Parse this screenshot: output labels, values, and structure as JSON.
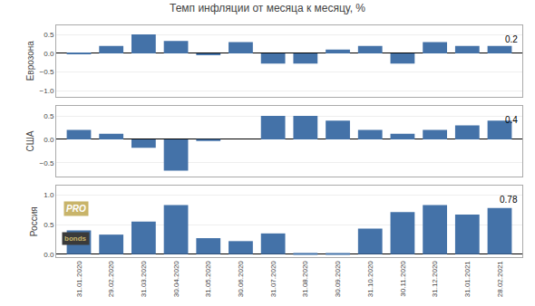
{
  "chart_data": [
    {
      "type": "bar",
      "title": "Темп инфляции от месяца к месяцу, %",
      "categories": [
        "31.01.2020",
        "29.02.2020",
        "31.03.2020",
        "30.04.2020",
        "31.05.2020",
        "30.06.2020",
        "31.07.2020",
        "31.08.2020",
        "30.09.2020",
        "31.10.2020",
        "30.11.2020",
        "31.12.2020",
        "31.01.2021",
        "28.02.2021"
      ],
      "values": [
        -0.02,
        0.2,
        0.51,
        0.33,
        -0.05,
        0.3,
        -0.27,
        -0.27,
        0.1,
        0.2,
        -0.27,
        0.3,
        0.2,
        0.2
      ],
      "color": "#4472a8",
      "y_label": "Еврозона",
      "ylim": [
        -1.15,
        0.75
      ],
      "yticks": [
        {
          "value": -1.0,
          "label": "−1.0"
        },
        {
          "value": -0.5,
          "label": "−0.5"
        },
        {
          "value": 0.0,
          "label": "0.0"
        },
        0.5
      ],
      "grid": true,
      "tick_labels": "y",
      "annotations": [
        {
          "text": "0.2"
        }
      ]
    },
    {
      "type": "bar",
      "categories": [
        "31.01.2020",
        "29.02.2020",
        "31.03.2020",
        "30.04.2020",
        "31.05.2020",
        "30.06.2020",
        "31.07.2020",
        "31.08.2020",
        "30.09.2020",
        "31.10.2020",
        "30.11.2020",
        "31.12.2020",
        "31.01.2021",
        "28.02.2021"
      ],
      "values": [
        0.2,
        0.12,
        -0.18,
        -0.67,
        -0.02,
        0.0,
        0.5,
        0.5,
        0.4,
        0.2,
        0.12,
        0.2,
        0.3,
        0.4
      ],
      "color": "#4472a8",
      "y_label": "США",
      "ylim": [
        -0.8,
        0.72
      ],
      "yticks": [
        {
          "value": -0.5,
          "label": "−0.5"
        },
        {
          "value": 0.0,
          "label": "0.0"
        },
        0.5
      ],
      "grid": true,
      "tick_labels": "y",
      "annotations": [
        {
          "text": "0.4"
        }
      ]
    },
    {
      "type": "bar",
      "categories": [
        "31.01.2020",
        "29.02.2020",
        "31.03.2020",
        "30.04.2020",
        "31.05.2020",
        "30.06.2020",
        "31.07.2020",
        "31.08.2020",
        "30.09.2020",
        "31.10.2020",
        "30.11.2020",
        "31.12.2020",
        "31.01.2021",
        "28.02.2021"
      ],
      "values": [
        0.4,
        0.33,
        0.55,
        0.83,
        0.27,
        0.22,
        0.35,
        0.02,
        0.01,
        0.43,
        0.71,
        0.83,
        0.67,
        0.78
      ],
      "color": "#4472a8",
      "y_label": "Россия",
      "ylim": [
        -0.05,
        1.15
      ],
      "yticks": [
        {
          "value": 0.0,
          "label": "0.0"
        },
        0.5,
        {
          "value": 1.0,
          "label": "1.0"
        }
      ],
      "grid": true,
      "annotations": [
        {
          "text": "0.78"
        },
        {
          "text": "PRO",
          "color": "#ffffff",
          "bgcolor": "#c8b46a"
        },
        {
          "text": "bonds",
          "color": "#c8b46a",
          "bgcolor": "#3a3a3a"
        }
      ]
    }
  ]
}
